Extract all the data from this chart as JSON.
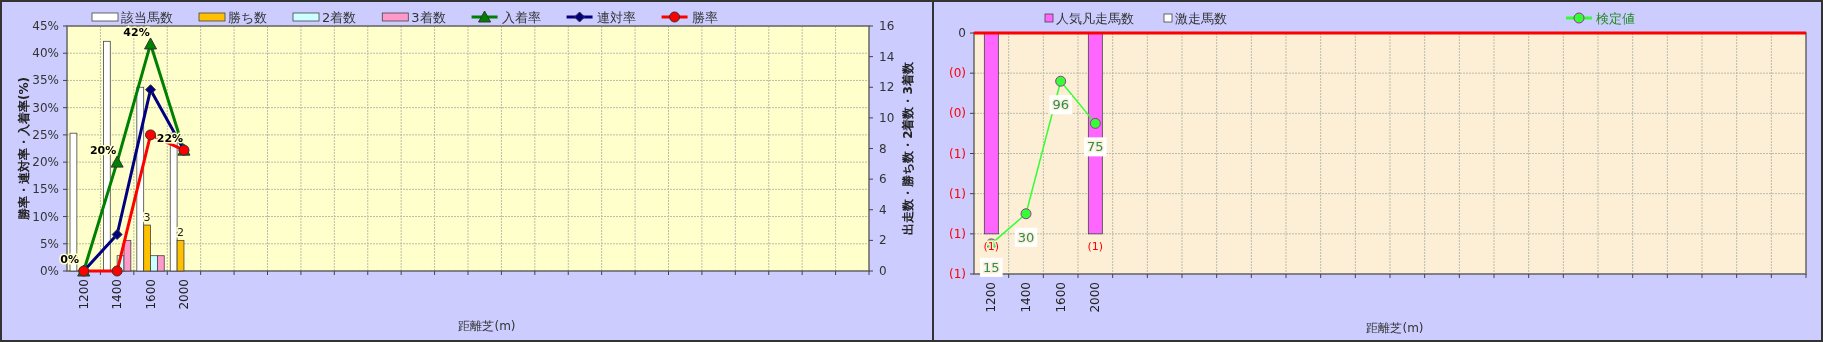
{
  "chart_data": [
    {
      "type": "bar",
      "xlabel": "距離芝(m)",
      "ylabel": "勝率・連対率・入着率(%)",
      "y2label": "出走数・勝ち数・2着数・3着数",
      "categories": [
        "1200",
        "1400",
        "1600",
        "2000",
        null,
        null,
        null,
        null,
        null,
        null,
        null,
        null,
        null,
        null,
        null,
        null,
        null,
        null,
        null,
        null,
        null,
        null,
        null,
        null
      ],
      "series": [
        {
          "name": "該当馬数",
          "color": "#ffffff",
          "axis": "y2",
          "values": [
            9,
            15,
            12,
            9,
            null,
            null,
            null,
            null,
            null,
            null,
            null,
            null,
            null,
            null,
            null,
            null,
            null,
            null,
            null,
            null,
            null,
            null,
            null,
            null
          ]
        },
        {
          "name": "勝ち数",
          "color": "#ffc000",
          "axis": "y2",
          "values": [
            0,
            0,
            3,
            2,
            null,
            null,
            null,
            null,
            null,
            null,
            null,
            null,
            null,
            null,
            null,
            null,
            null,
            null,
            null,
            null,
            null,
            null,
            null,
            null
          ],
          "value_labels": [
            null,
            null,
            "3",
            "2",
            null,
            null,
            null,
            null,
            null,
            null,
            null,
            null,
            null,
            null,
            null,
            null,
            null,
            null,
            null,
            null,
            null,
            null,
            null,
            null
          ]
        },
        {
          "name": "2着数",
          "color": "#ccffff",
          "axis": "y2",
          "values": [
            0,
            1,
            1,
            0,
            null,
            null,
            null,
            null,
            null,
            null,
            null,
            null,
            null,
            null,
            null,
            null,
            null,
            null,
            null,
            null,
            null,
            null,
            null,
            null
          ]
        },
        {
          "name": "3着数",
          "color": "#ff99cc",
          "axis": "y2",
          "values": [
            0,
            2,
            1,
            0,
            null,
            null,
            null,
            null,
            null,
            null,
            null,
            null,
            null,
            null,
            null,
            null,
            null,
            null,
            null,
            null,
            null,
            null,
            null,
            null
          ]
        },
        {
          "name": "入着率",
          "type": "line",
          "color": "#008000",
          "marker": "triangle",
          "values": [
            0,
            20,
            41.7,
            22.2,
            null,
            null,
            null,
            null,
            null,
            null,
            null,
            null,
            null,
            null,
            null,
            null,
            null,
            null,
            null,
            null,
            null,
            null,
            null,
            null
          ],
          "value_labels": [
            "0%",
            "20%",
            "42%",
            "22%",
            null,
            null,
            null,
            null,
            null,
            null,
            null,
            null,
            null,
            null,
            null,
            null,
            null,
            null,
            null,
            null,
            null,
            null,
            null,
            null
          ]
        },
        {
          "name": "連対率",
          "type": "line",
          "color": "#000080",
          "marker": "diamond",
          "values": [
            0,
            6.7,
            33.3,
            22.2,
            null,
            null,
            null,
            null,
            null,
            null,
            null,
            null,
            null,
            null,
            null,
            null,
            null,
            null,
            null,
            null,
            null,
            null,
            null,
            null
          ]
        },
        {
          "name": "勝率",
          "type": "line",
          "color": "#ff0000",
          "marker": "circle",
          "values": [
            0,
            0,
            25,
            22.2,
            null,
            null,
            null,
            null,
            null,
            null,
            null,
            null,
            null,
            null,
            null,
            null,
            null,
            null,
            null,
            null,
            null,
            null,
            null,
            null
          ]
        }
      ],
      "ylim": [
        0,
        45
      ],
      "yticks": [
        {
          "value": 0,
          "label": "0%"
        },
        {
          "value": 5,
          "label": "5%"
        },
        {
          "value": 10,
          "label": "10%"
        },
        {
          "value": 15,
          "label": "15%"
        },
        {
          "value": 20,
          "label": "20%"
        },
        {
          "value": 25,
          "label": "25%"
        },
        {
          "value": 30,
          "label": "30%"
        },
        {
          "value": 35,
          "label": "35%"
        },
        {
          "value": 40,
          "label": "40%"
        },
        {
          "value": 45,
          "label": "45%"
        }
      ],
      "y2lim": [
        0,
        16
      ],
      "y2ticks": [
        0,
        2,
        4,
        6,
        8,
        10,
        12,
        14,
        16
      ],
      "grid": true,
      "legend": "top"
    },
    {
      "type": "bar",
      "xlabel": "距離芝(m)",
      "stacked": true,
      "categories": [
        "1200",
        "1400",
        "1600",
        "2000",
        null,
        null,
        null,
        null,
        null,
        null,
        null,
        null,
        null,
        null,
        null,
        null,
        null,
        null,
        null,
        null,
        null,
        null,
        null,
        null
      ],
      "series": [
        {
          "name": "人気凡走馬数",
          "color": "#ff66ff",
          "values": [
            -1,
            0,
            0,
            -1,
            null,
            null,
            null,
            null,
            null,
            null,
            null,
            null,
            null,
            null,
            null,
            null,
            null,
            null,
            null,
            null,
            null,
            null,
            null,
            null
          ],
          "value_labels": [
            "(1)",
            null,
            null,
            "(1)",
            null,
            null,
            null,
            null,
            null,
            null,
            null,
            null,
            null,
            null,
            null,
            null,
            null,
            null,
            null,
            null,
            null,
            null,
            null,
            null
          ]
        },
        {
          "name": "激走馬数",
          "color": "#ffffff",
          "values": [
            0,
            0,
            0,
            0,
            null,
            null,
            null,
            null,
            null,
            null,
            null,
            null,
            null,
            null,
            null,
            null,
            null,
            null,
            null,
            null,
            null,
            null,
            null,
            null
          ]
        },
        {
          "name": "検定値",
          "type": "line",
          "color": "#33ff33",
          "marker": "circle",
          "axis": "y2",
          "values": [
            15,
            30,
            96,
            75,
            null,
            null,
            null,
            null,
            null,
            null,
            null,
            null,
            null,
            null,
            null,
            null,
            null,
            null,
            null,
            null,
            null,
            null,
            null,
            null
          ],
          "value_labels": [
            "15",
            "30",
            "96",
            "75",
            null,
            null,
            null,
            null,
            null,
            null,
            null,
            null,
            null,
            null,
            null,
            null,
            null,
            null,
            null,
            null,
            null,
            null,
            null,
            null
          ]
        }
      ],
      "ylim": [
        -1.2,
        0
      ],
      "yticks": [
        {
          "value": -1.2,
          "label": "(1)"
        },
        {
          "value": -1,
          "label": "(1)"
        },
        {
          "value": -0.8,
          "label": "(1)"
        },
        {
          "value": -0.6,
          "label": "(1)"
        },
        {
          "value": -0.4,
          "label": "(0)"
        },
        {
          "value": -0.2,
          "label": "(0)"
        },
        {
          "value": 0,
          "label": "0"
        }
      ],
      "y2lim": [
        0,
        120
      ],
      "ref_lines": [
        {
          "axis": "y",
          "value": 0,
          "color": "#ff0000"
        }
      ],
      "grid": true,
      "legend": "top"
    }
  ]
}
